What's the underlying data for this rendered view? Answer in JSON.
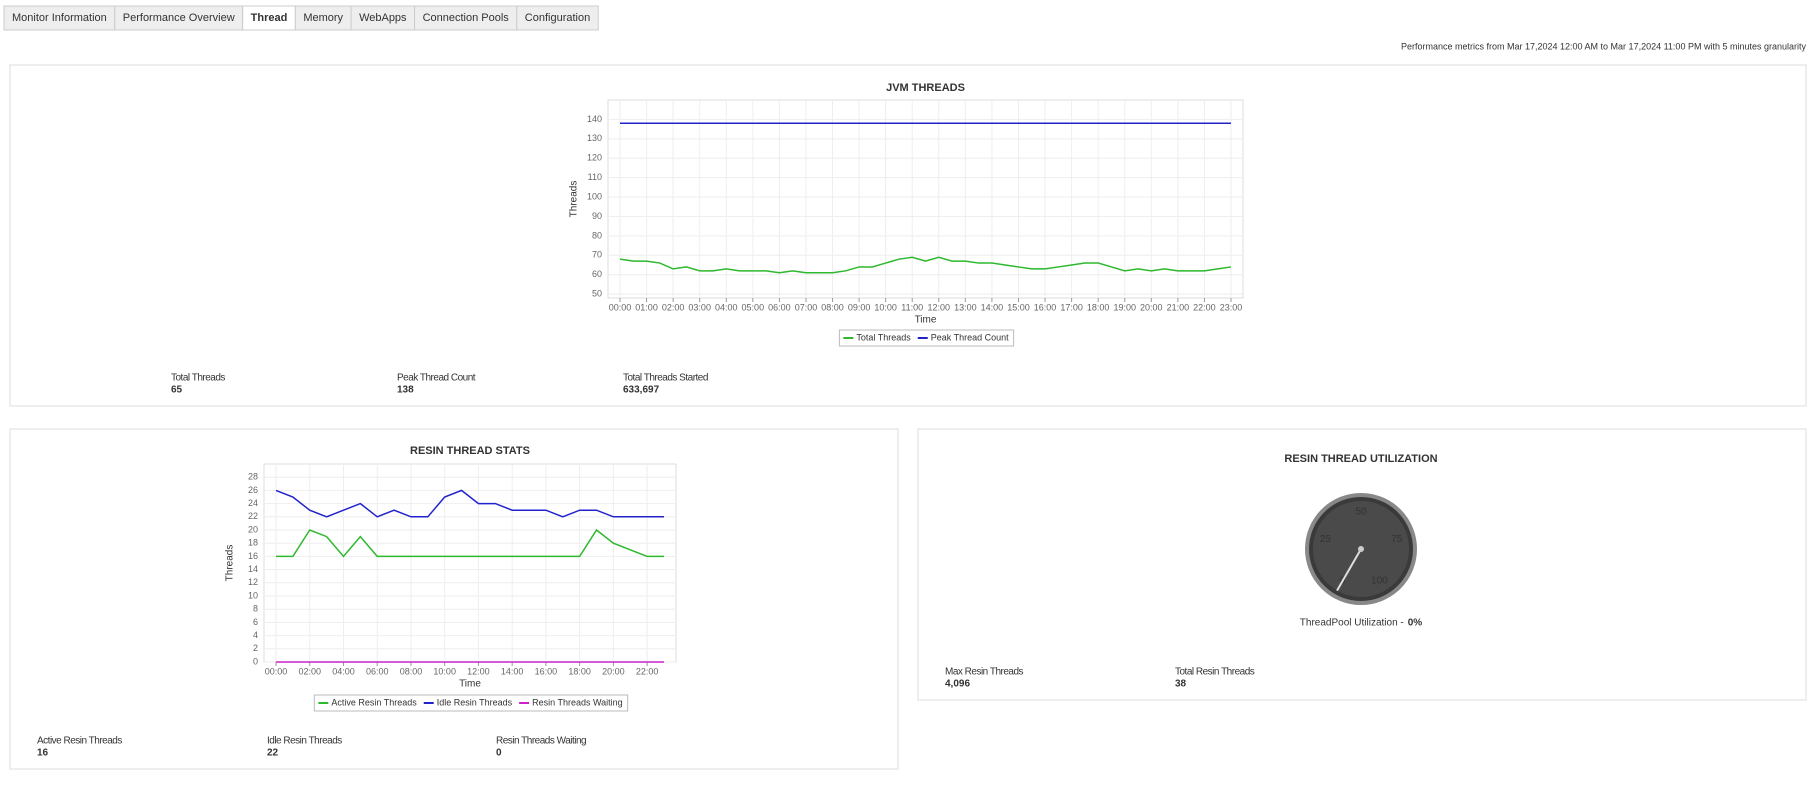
{
  "tabs": [
    "Monitor Information",
    "Performance Overview",
    "Thread",
    "Memory",
    "WebApps",
    "Connection Pools",
    "Configuration"
  ],
  "active_tab": 2,
  "period_note": "Performance metrics from Mar 17,2024 12:00 AM to Mar 17,2024 11:00 PM with 5 minutes granularity",
  "chart_data": [
    {
      "type": "line",
      "title": "JVM THREADS",
      "x_label": "Time",
      "y_label": "Threads",
      "categories": [
        "00:00",
        null,
        "01:00",
        null,
        "02:00",
        null,
        "03:00",
        null,
        "04:00",
        null,
        "05:00",
        null,
        "06:00",
        null,
        "07:00",
        null,
        "08:00",
        null,
        "09:00",
        null,
        "10:00",
        null,
        "11:00",
        null,
        "12:00",
        null,
        "13:00",
        null,
        "14:00",
        null,
        "15:00",
        null,
        "16:00",
        null,
        "17:00",
        null,
        "18:00",
        null,
        "19:00",
        null,
        "20:00",
        null,
        "21:00",
        null,
        "22:00",
        null,
        "23:00"
      ],
      "series": [
        {
          "name": "Total Threads",
          "color": "#2db82d",
          "values": [
            68,
            67,
            67,
            66,
            63,
            64,
            62,
            62,
            63,
            62,
            62,
            62,
            61,
            62,
            61,
            61,
            61,
            62,
            64,
            64,
            66,
            68,
            69,
            67,
            69,
            67,
            67,
            66,
            66,
            65,
            64,
            63,
            63,
            64,
            65,
            66,
            66,
            64,
            62,
            63,
            62,
            63,
            62,
            62,
            62,
            63,
            64
          ]
        },
        {
          "name": "Peak Thread Count",
          "color": "#2222cc",
          "values": [
            138,
            138,
            138,
            138,
            138,
            138,
            138,
            138,
            138,
            138,
            138,
            138,
            138,
            138,
            138,
            138,
            138,
            138,
            138,
            138,
            138,
            138,
            138,
            138,
            138,
            138,
            138,
            138,
            138,
            138,
            138,
            138,
            138,
            138,
            138,
            138,
            138,
            138,
            138,
            138,
            138,
            138,
            138,
            138,
            138,
            138,
            138
          ]
        }
      ],
      "ylim": [
        48,
        150
      ],
      "yticks": [
        50,
        60,
        70,
        80,
        90,
        100,
        110,
        120,
        130,
        140
      ],
      "grid": true
    },
    {
      "type": "line",
      "title": "RESIN THREAD STATS",
      "x_label": "Time",
      "y_label": "Threads",
      "categories": [
        "00:00",
        null,
        "02:00",
        null,
        "04:00",
        null,
        "06:00",
        null,
        "08:00",
        null,
        "10:00",
        null,
        "12:00",
        null,
        "14:00",
        null,
        "16:00",
        null,
        "18:00",
        null,
        "20:00",
        null,
        "22:00",
        null
      ],
      "series": [
        {
          "name": "Active Resin Threads",
          "color": "#2db82d",
          "values": [
            16,
            16,
            20,
            19,
            16,
            19,
            16,
            16,
            16,
            16,
            16,
            16,
            16,
            16,
            16,
            16,
            16,
            16,
            16,
            20,
            18,
            17,
            16,
            16
          ]
        },
        {
          "name": "Idle Resin Threads",
          "color": "#2222cc",
          "values": [
            26,
            25,
            23,
            22,
            23,
            24,
            22,
            23,
            22,
            22,
            25,
            26,
            24,
            24,
            23,
            23,
            23,
            22,
            23,
            23,
            22,
            22,
            22,
            22
          ]
        },
        {
          "name": "Resin Threads Waiting",
          "color": "#cc22cc",
          "values": [
            0,
            0,
            0,
            0,
            0,
            0,
            0,
            0,
            0,
            0,
            0,
            0,
            0,
            0,
            0,
            0,
            0,
            0,
            0,
            0,
            0,
            0,
            0,
            0
          ]
        }
      ],
      "ylim": [
        0,
        30
      ],
      "yticks": [
        0,
        2,
        4,
        6,
        8,
        10,
        12,
        14,
        16,
        18,
        20,
        22,
        24,
        26,
        28
      ],
      "grid": true
    },
    {
      "type": "gauge",
      "title": "RESIN THREAD UTILIZATION",
      "caption": "ThreadPool Utilization -",
      "value": 0,
      "value_label": "0%",
      "ylim": [
        0,
        100
      ],
      "yticks": [
        0,
        25,
        50,
        75,
        100
      ]
    }
  ],
  "stats": [
    [
      {
        "label": "Total Threads",
        "value": 65
      },
      {
        "label": "Peak Thread Count",
        "value": 138
      },
      {
        "label": "Total Threads Started",
        "value": "633,697"
      }
    ],
    [
      {
        "label": "Active Resin Threads",
        "value": 16
      },
      {
        "label": "Idle Resin Threads",
        "value": 22
      },
      {
        "label": "Resin Threads Waiting",
        "value": 0
      }
    ],
    [
      {
        "label": "Max Resin Threads",
        "value": "4,096"
      },
      {
        "label": "Total Resin Threads",
        "value": 38
      }
    ]
  ]
}
